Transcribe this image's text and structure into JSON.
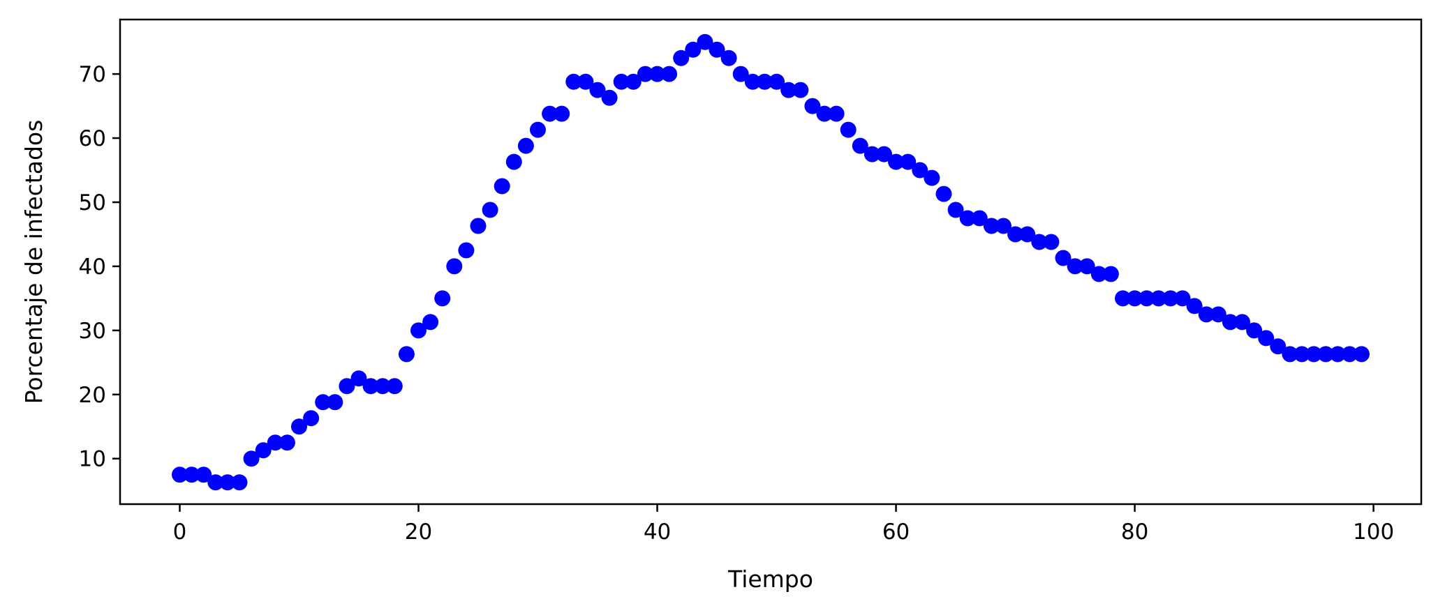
{
  "chart_data": {
    "type": "scatter",
    "title": "",
    "xlabel": "Tiempo",
    "ylabel": "Porcentaje de infectados",
    "xlim": [
      -5,
      104
    ],
    "ylim": [
      2.9,
      78.5
    ],
    "xticks": [
      0,
      20,
      40,
      60,
      80,
      100
    ],
    "yticks": [
      10,
      20,
      30,
      40,
      50,
      60,
      70
    ],
    "grid": false,
    "legend": "none",
    "marker_color": "#0000ff",
    "series": [
      {
        "x": [
          0,
          1,
          2,
          3,
          4,
          5,
          6,
          7,
          8,
          9,
          10,
          11,
          12,
          13,
          14,
          15,
          16,
          17,
          18,
          19,
          20,
          21,
          22,
          23,
          24,
          25,
          26,
          27,
          28,
          29,
          30,
          31,
          32,
          33,
          34,
          35,
          36,
          37,
          38,
          39,
          40,
          41,
          42,
          43,
          44,
          45,
          46,
          47,
          48,
          49,
          50,
          51,
          52,
          53,
          54,
          55,
          56,
          57,
          58,
          59,
          60,
          61,
          62,
          63,
          64,
          65,
          66,
          67,
          68,
          69,
          70,
          71,
          72,
          73,
          74,
          75,
          76,
          77,
          78,
          79,
          80,
          81,
          82,
          83,
          84,
          85,
          86,
          87,
          88,
          89,
          90,
          91,
          92,
          93,
          94,
          95,
          96,
          97,
          98,
          99
        ],
        "y": [
          7.5,
          7.5,
          7.5,
          6.3,
          6.3,
          6.3,
          10.0,
          11.3,
          12.5,
          12.5,
          15.0,
          16.3,
          18.8,
          18.8,
          21.3,
          22.5,
          21.3,
          21.3,
          21.3,
          26.3,
          30.0,
          31.3,
          35.0,
          40.0,
          42.5,
          46.3,
          48.8,
          52.5,
          56.3,
          58.8,
          61.3,
          63.8,
          63.8,
          68.8,
          68.8,
          67.5,
          66.3,
          68.8,
          68.8,
          70.0,
          70.0,
          70.0,
          72.5,
          73.8,
          75.0,
          73.8,
          72.5,
          70.0,
          68.8,
          68.8,
          68.8,
          67.5,
          67.5,
          65.0,
          63.8,
          63.8,
          61.3,
          58.8,
          57.5,
          57.5,
          56.3,
          56.3,
          55.0,
          53.8,
          51.3,
          48.8,
          47.5,
          47.5,
          46.3,
          46.3,
          45.0,
          45.0,
          43.8,
          43.8,
          41.3,
          40.0,
          40.0,
          38.8,
          38.8,
          35.0,
          35.0,
          35.0,
          35.0,
          35.0,
          35.0,
          33.8,
          32.5,
          32.5,
          31.3,
          31.3,
          30.0,
          28.8,
          27.5,
          26.3,
          26.3,
          26.3,
          26.3,
          26.3,
          26.3,
          26.3
        ]
      }
    ]
  }
}
